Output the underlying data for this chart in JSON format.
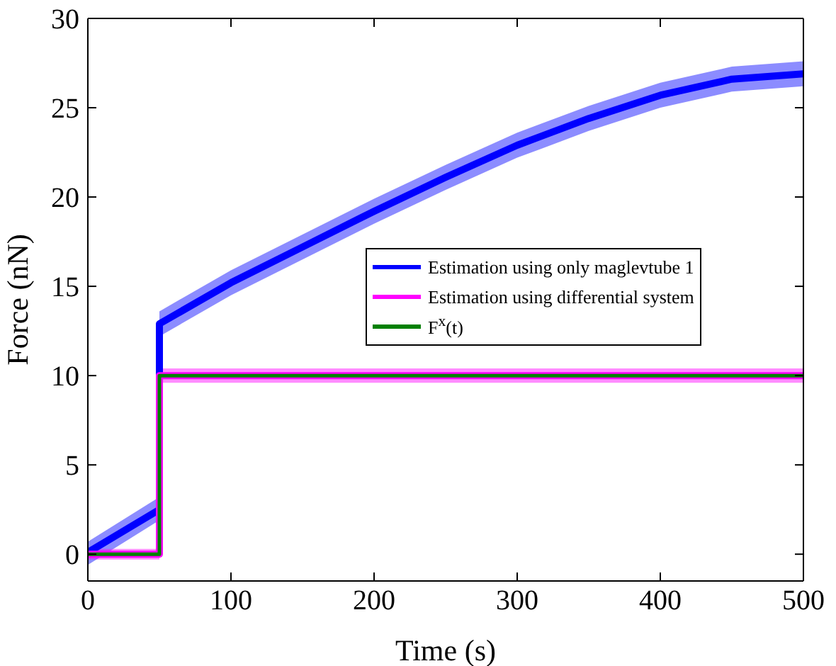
{
  "chart_data": {
    "type": "line",
    "xlabel": "Time (s)",
    "ylabel": "Force (nN)",
    "xlim": [
      0,
      500
    ],
    "xticks": [
      0,
      100,
      200,
      300,
      400,
      500
    ],
    "ylim": [
      -1.5,
      30
    ],
    "yticks": [
      0,
      5,
      10,
      15,
      20,
      25,
      30
    ],
    "grid": false,
    "legend": "right",
    "series": [
      {
        "name": "Estimation using only maglevtube 1",
        "color": "#0000ff",
        "x": [
          0,
          50,
          50,
          100,
          150,
          200,
          250,
          300,
          350,
          400,
          450,
          500
        ],
        "values": [
          0.1,
          2.5,
          12.9,
          15.2,
          17.2,
          19.2,
          21.1,
          22.9,
          24.4,
          25.7,
          26.6,
          26.9
        ],
        "lower": [
          -0.6,
          1.9,
          12.2,
          14.5,
          16.5,
          18.5,
          20.4,
          22.2,
          23.7,
          25.0,
          25.9,
          26.2
        ],
        "upper": [
          0.7,
          3.2,
          13.6,
          15.9,
          17.9,
          19.9,
          21.8,
          23.6,
          25.1,
          26.4,
          27.3,
          27.6
        ]
      },
      {
        "name": "Estimation using differential system",
        "color": "#ff00ff",
        "x": [
          0,
          50,
          50,
          500
        ],
        "values": [
          0,
          0,
          10,
          10
        ],
        "lower": [
          -0.3,
          -0.3,
          9.6,
          9.6
        ],
        "upper": [
          0.3,
          0.3,
          10.4,
          10.4
        ]
      },
      {
        "name": "F$^{x}$(t)",
        "color": "#008000",
        "x": [
          0,
          50,
          50,
          500
        ],
        "values": [
          0,
          0,
          10,
          10
        ]
      }
    ]
  }
}
